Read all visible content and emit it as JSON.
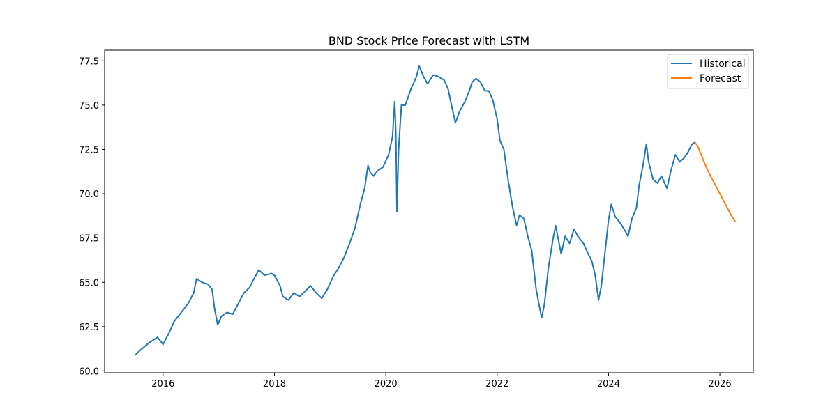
{
  "chart_data": {
    "type": "line",
    "title": "BND Stock Price Forecast with LSTM",
    "xlabel": "",
    "ylabel": "",
    "xlim": [
      2014.95,
      2026.6
    ],
    "ylim": [
      59.9,
      78.1
    ],
    "x_ticks": [
      2016,
      2018,
      2020,
      2022,
      2024,
      2026
    ],
    "x_tick_labels": [
      "2016",
      "2018",
      "2020",
      "2022",
      "2024",
      "2026"
    ],
    "y_ticks": [
      60.0,
      62.5,
      65.0,
      67.5,
      70.0,
      72.5,
      75.0,
      77.5
    ],
    "y_tick_labels": [
      "60.0",
      "62.5",
      "65.0",
      "67.5",
      "70.0",
      "72.5",
      "75.0",
      "77.5"
    ],
    "grid": false,
    "legend": {
      "position": "upper right",
      "entries": [
        "Historical",
        "Forecast"
      ]
    },
    "series": [
      {
        "name": "Historical",
        "color": "#1f77b4",
        "points": [
          [
            2015.5,
            60.9
          ],
          [
            2015.6,
            61.2
          ],
          [
            2015.75,
            61.6
          ],
          [
            2015.9,
            61.9
          ],
          [
            2016.0,
            61.5
          ],
          [
            2016.1,
            62.1
          ],
          [
            2016.2,
            62.8
          ],
          [
            2016.3,
            63.2
          ],
          [
            2016.45,
            63.8
          ],
          [
            2016.55,
            64.4
          ],
          [
            2016.6,
            65.2
          ],
          [
            2016.7,
            65.0
          ],
          [
            2016.8,
            64.9
          ],
          [
            2016.88,
            64.6
          ],
          [
            2016.92,
            63.6
          ],
          [
            2016.98,
            62.6
          ],
          [
            2017.05,
            63.1
          ],
          [
            2017.15,
            63.3
          ],
          [
            2017.25,
            63.2
          ],
          [
            2017.35,
            63.8
          ],
          [
            2017.45,
            64.4
          ],
          [
            2017.55,
            64.7
          ],
          [
            2017.65,
            65.3
          ],
          [
            2017.72,
            65.7
          ],
          [
            2017.82,
            65.4
          ],
          [
            2017.95,
            65.5
          ],
          [
            2018.0,
            65.4
          ],
          [
            2018.1,
            64.8
          ],
          [
            2018.15,
            64.2
          ],
          [
            2018.25,
            64.0
          ],
          [
            2018.35,
            64.4
          ],
          [
            2018.45,
            64.2
          ],
          [
            2018.55,
            64.5
          ],
          [
            2018.65,
            64.8
          ],
          [
            2018.75,
            64.4
          ],
          [
            2018.85,
            64.1
          ],
          [
            2018.95,
            64.6
          ],
          [
            2019.05,
            65.3
          ],
          [
            2019.15,
            65.8
          ],
          [
            2019.25,
            66.4
          ],
          [
            2019.35,
            67.2
          ],
          [
            2019.45,
            68.1
          ],
          [
            2019.55,
            69.5
          ],
          [
            2019.62,
            70.3
          ],
          [
            2019.68,
            71.6
          ],
          [
            2019.72,
            71.2
          ],
          [
            2019.78,
            71.0
          ],
          [
            2019.85,
            71.3
          ],
          [
            2019.95,
            71.5
          ],
          [
            2020.05,
            72.2
          ],
          [
            2020.12,
            73.2
          ],
          [
            2020.16,
            75.2
          ],
          [
            2020.18,
            73.5
          ],
          [
            2020.2,
            69.0
          ],
          [
            2020.23,
            72.5
          ],
          [
            2020.28,
            75.0
          ],
          [
            2020.35,
            75.0
          ],
          [
            2020.45,
            75.9
          ],
          [
            2020.55,
            76.6
          ],
          [
            2020.6,
            77.2
          ],
          [
            2020.68,
            76.6
          ],
          [
            2020.75,
            76.2
          ],
          [
            2020.85,
            76.7
          ],
          [
            2020.95,
            76.6
          ],
          [
            2021.05,
            76.4
          ],
          [
            2021.12,
            75.9
          ],
          [
            2021.18,
            75.0
          ],
          [
            2021.25,
            74.0
          ],
          [
            2021.32,
            74.6
          ],
          [
            2021.42,
            75.2
          ],
          [
            2021.5,
            75.8
          ],
          [
            2021.55,
            76.3
          ],
          [
            2021.62,
            76.5
          ],
          [
            2021.7,
            76.3
          ],
          [
            2021.78,
            75.8
          ],
          [
            2021.85,
            75.8
          ],
          [
            2021.92,
            75.3
          ],
          [
            2022.0,
            74.2
          ],
          [
            2022.05,
            73.0
          ],
          [
            2022.12,
            72.5
          ],
          [
            2022.2,
            70.7
          ],
          [
            2022.28,
            69.2
          ],
          [
            2022.35,
            68.2
          ],
          [
            2022.4,
            68.8
          ],
          [
            2022.48,
            68.6
          ],
          [
            2022.55,
            67.6
          ],
          [
            2022.62,
            66.8
          ],
          [
            2022.7,
            64.6
          ],
          [
            2022.76,
            63.6
          ],
          [
            2022.8,
            63.0
          ],
          [
            2022.85,
            63.8
          ],
          [
            2022.92,
            65.8
          ],
          [
            2023.0,
            67.4
          ],
          [
            2023.05,
            68.2
          ],
          [
            2023.1,
            67.4
          ],
          [
            2023.15,
            66.6
          ],
          [
            2023.22,
            67.6
          ],
          [
            2023.3,
            67.2
          ],
          [
            2023.38,
            68.0
          ],
          [
            2023.45,
            67.6
          ],
          [
            2023.55,
            67.2
          ],
          [
            2023.62,
            66.7
          ],
          [
            2023.7,
            66.2
          ],
          [
            2023.76,
            65.4
          ],
          [
            2023.82,
            64.0
          ],
          [
            2023.87,
            64.8
          ],
          [
            2023.93,
            66.5
          ],
          [
            2024.0,
            68.5
          ],
          [
            2024.05,
            69.4
          ],
          [
            2024.12,
            68.7
          ],
          [
            2024.2,
            68.4
          ],
          [
            2024.28,
            68.0
          ],
          [
            2024.35,
            67.6
          ],
          [
            2024.42,
            68.6
          ],
          [
            2024.5,
            69.2
          ],
          [
            2024.55,
            70.5
          ],
          [
            2024.62,
            71.6
          ],
          [
            2024.68,
            72.8
          ],
          [
            2024.72,
            71.8
          ],
          [
            2024.8,
            70.8
          ],
          [
            2024.88,
            70.6
          ],
          [
            2024.95,
            71.0
          ],
          [
            2025.05,
            70.3
          ],
          [
            2025.12,
            71.3
          ],
          [
            2025.2,
            72.2
          ],
          [
            2025.28,
            71.8
          ],
          [
            2025.35,
            72.0
          ],
          [
            2025.42,
            72.3
          ],
          [
            2025.5,
            72.8
          ],
          [
            2025.55,
            72.9
          ]
        ]
      },
      {
        "name": "Forecast",
        "color": "#ff7f0e",
        "points": [
          [
            2025.55,
            72.9
          ],
          [
            2025.6,
            72.7
          ],
          [
            2025.7,
            71.9
          ],
          [
            2025.8,
            71.2
          ],
          [
            2025.9,
            70.6
          ],
          [
            2026.0,
            70.0
          ],
          [
            2026.1,
            69.4
          ],
          [
            2026.2,
            68.8
          ],
          [
            2026.28,
            68.4
          ]
        ]
      }
    ]
  }
}
